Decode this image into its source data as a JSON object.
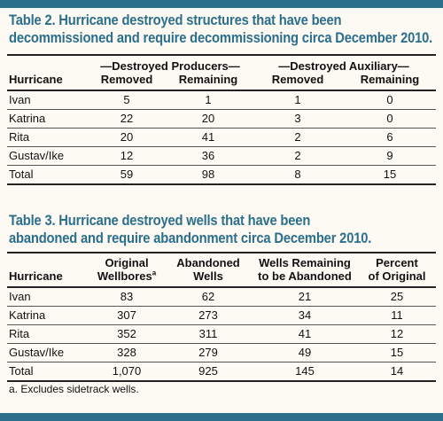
{
  "colors": {
    "accent": "#2b6f8c",
    "background": "#fdfaf4"
  },
  "table2": {
    "title_line1": "Table 2. Hurricane destroyed structures that have been",
    "title_line2": "decommissioned and require decommissioning circa December 2010.",
    "group_producers": "—Destroyed Producers—",
    "group_auxiliary": "—Destroyed Auxiliary—",
    "headers": [
      "Hurricane",
      "Removed",
      "Remaining",
      "Removed",
      "Remaining"
    ],
    "rows": [
      [
        "Ivan",
        "5",
        "1",
        "1",
        "0"
      ],
      [
        "Katrina",
        "22",
        "20",
        "3",
        "0"
      ],
      [
        "Rita",
        "20",
        "41",
        "2",
        "6"
      ],
      [
        "Gustav/Ike",
        "12",
        "36",
        "2",
        "9"
      ],
      [
        "Total",
        "59",
        "98",
        "8",
        "15"
      ]
    ]
  },
  "table3": {
    "title_line1": "Table 3. Hurricane destroyed wells that have been",
    "title_line2": "abandoned and require abandonment circa December 2010.",
    "headers": {
      "hurricane": "Hurricane",
      "original_line1": "Original",
      "original_line2": "Wellbores",
      "original_sup": "a",
      "abandoned_line1": "Abandoned",
      "abandoned_line2": "Wells",
      "remaining_line1": "Wells Remaining",
      "remaining_line2": "to be Abandoned",
      "percent_line1": "Percent",
      "percent_line2": "of Original"
    },
    "rows": [
      [
        "Ivan",
        "83",
        "62",
        "21",
        "25"
      ],
      [
        "Katrina",
        "307",
        "273",
        "34",
        "11"
      ],
      [
        "Rita",
        "352",
        "311",
        "41",
        "12"
      ],
      [
        "Gustav/Ike",
        "328",
        "279",
        "49",
        "15"
      ],
      [
        "Total",
        "1,070",
        "925",
        "145",
        "14"
      ]
    ],
    "footnote": "a. Excludes sidetrack wells."
  }
}
